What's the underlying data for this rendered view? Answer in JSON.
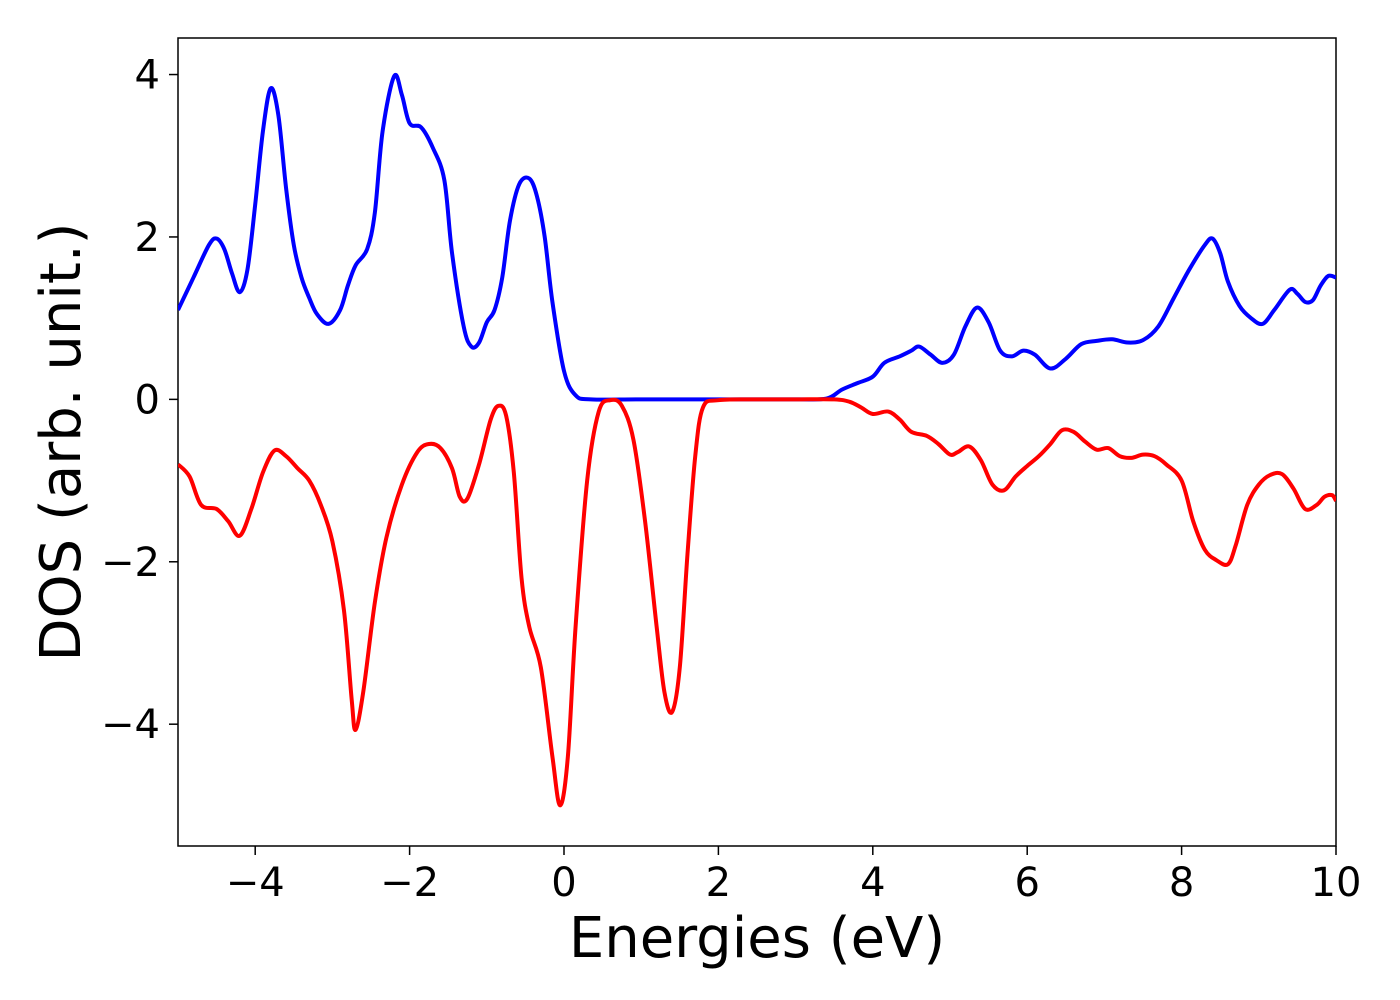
{
  "chart_data": {
    "type": "line",
    "title": "",
    "xlabel": "Energies (eV)",
    "ylabel": "DOS (arb. unit.)",
    "xlim": [
      -5,
      10
    ],
    "ylim": [
      -5.5,
      4.45
    ],
    "x_ticks": [
      -4,
      -2,
      0,
      2,
      4,
      6,
      8,
      10
    ],
    "x_tick_labels": [
      "−4",
      "−2",
      "0",
      "2",
      "4",
      "6",
      "8",
      "10"
    ],
    "y_ticks": [
      4,
      2,
      0,
      -2,
      -4
    ],
    "y_tick_labels": [
      "4",
      "2",
      "0",
      "−2",
      "−4"
    ],
    "grid": false,
    "series": [
      {
        "color": "#0000ff",
        "points": [
          [
            -5.0,
            1.1
          ],
          [
            -4.8,
            1.5
          ],
          [
            -4.6,
            1.9
          ],
          [
            -4.5,
            1.98
          ],
          [
            -4.4,
            1.85
          ],
          [
            -4.3,
            1.55
          ],
          [
            -4.2,
            1.32
          ],
          [
            -4.1,
            1.6
          ],
          [
            -4.0,
            2.4
          ],
          [
            -3.9,
            3.3
          ],
          [
            -3.8,
            3.83
          ],
          [
            -3.7,
            3.5
          ],
          [
            -3.6,
            2.6
          ],
          [
            -3.5,
            1.9
          ],
          [
            -3.4,
            1.5
          ],
          [
            -3.3,
            1.25
          ],
          [
            -3.2,
            1.05
          ],
          [
            -3.05,
            0.93
          ],
          [
            -2.9,
            1.1
          ],
          [
            -2.8,
            1.4
          ],
          [
            -2.7,
            1.65
          ],
          [
            -2.55,
            1.85
          ],
          [
            -2.45,
            2.3
          ],
          [
            -2.35,
            3.3
          ],
          [
            -2.2,
            3.98
          ],
          [
            -2.1,
            3.75
          ],
          [
            -2.0,
            3.4
          ],
          [
            -1.85,
            3.35
          ],
          [
            -1.7,
            3.1
          ],
          [
            -1.55,
            2.7
          ],
          [
            -1.45,
            1.8
          ],
          [
            -1.3,
            0.9
          ],
          [
            -1.2,
            0.65
          ],
          [
            -1.1,
            0.7
          ],
          [
            -1.0,
            0.95
          ],
          [
            -0.9,
            1.1
          ],
          [
            -0.8,
            1.5
          ],
          [
            -0.7,
            2.2
          ],
          [
            -0.58,
            2.65
          ],
          [
            -0.45,
            2.72
          ],
          [
            -0.35,
            2.5
          ],
          [
            -0.25,
            2.0
          ],
          [
            -0.15,
            1.2
          ],
          [
            0.0,
            0.35
          ],
          [
            0.15,
            0.05
          ],
          [
            0.35,
            0.0
          ],
          [
            1.0,
            0.0
          ],
          [
            2.0,
            0.0
          ],
          [
            3.0,
            0.0
          ],
          [
            3.4,
            0.01
          ],
          [
            3.6,
            0.12
          ],
          [
            3.8,
            0.2
          ],
          [
            4.0,
            0.28
          ],
          [
            4.15,
            0.45
          ],
          [
            4.35,
            0.53
          ],
          [
            4.5,
            0.6
          ],
          [
            4.6,
            0.65
          ],
          [
            4.75,
            0.55
          ],
          [
            4.9,
            0.45
          ],
          [
            5.05,
            0.55
          ],
          [
            5.2,
            0.9
          ],
          [
            5.35,
            1.13
          ],
          [
            5.5,
            0.95
          ],
          [
            5.65,
            0.6
          ],
          [
            5.8,
            0.53
          ],
          [
            5.95,
            0.6
          ],
          [
            6.1,
            0.55
          ],
          [
            6.3,
            0.38
          ],
          [
            6.5,
            0.5
          ],
          [
            6.7,
            0.68
          ],
          [
            6.9,
            0.72
          ],
          [
            7.1,
            0.74
          ],
          [
            7.3,
            0.7
          ],
          [
            7.5,
            0.73
          ],
          [
            7.7,
            0.9
          ],
          [
            7.9,
            1.25
          ],
          [
            8.1,
            1.6
          ],
          [
            8.3,
            1.9
          ],
          [
            8.4,
            1.98
          ],
          [
            8.5,
            1.8
          ],
          [
            8.6,
            1.45
          ],
          [
            8.75,
            1.15
          ],
          [
            8.9,
            1.0
          ],
          [
            9.05,
            0.93
          ],
          [
            9.2,
            1.1
          ],
          [
            9.4,
            1.35
          ],
          [
            9.5,
            1.3
          ],
          [
            9.6,
            1.2
          ],
          [
            9.7,
            1.22
          ],
          [
            9.8,
            1.4
          ],
          [
            9.9,
            1.52
          ],
          [
            10.0,
            1.5
          ]
        ]
      },
      {
        "color": "#ff0000",
        "points": [
          [
            -5.0,
            -0.8
          ],
          [
            -4.85,
            -0.95
          ],
          [
            -4.7,
            -1.3
          ],
          [
            -4.5,
            -1.35
          ],
          [
            -4.35,
            -1.5
          ],
          [
            -4.2,
            -1.68
          ],
          [
            -4.05,
            -1.35
          ],
          [
            -3.9,
            -0.9
          ],
          [
            -3.75,
            -0.63
          ],
          [
            -3.6,
            -0.7
          ],
          [
            -3.45,
            -0.85
          ],
          [
            -3.3,
            -1.0
          ],
          [
            -3.15,
            -1.3
          ],
          [
            -3.0,
            -1.75
          ],
          [
            -2.85,
            -2.6
          ],
          [
            -2.75,
            -3.7
          ],
          [
            -2.7,
            -4.07
          ],
          [
            -2.6,
            -3.6
          ],
          [
            -2.45,
            -2.5
          ],
          [
            -2.3,
            -1.7
          ],
          [
            -2.1,
            -1.05
          ],
          [
            -1.9,
            -0.65
          ],
          [
            -1.75,
            -0.55
          ],
          [
            -1.6,
            -0.6
          ],
          [
            -1.45,
            -0.85
          ],
          [
            -1.35,
            -1.2
          ],
          [
            -1.25,
            -1.22
          ],
          [
            -1.1,
            -0.8
          ],
          [
            -0.95,
            -0.25
          ],
          [
            -0.85,
            -0.08
          ],
          [
            -0.75,
            -0.2
          ],
          [
            -0.65,
            -0.9
          ],
          [
            -0.55,
            -2.2
          ],
          [
            -0.45,
            -2.8
          ],
          [
            -0.3,
            -3.3
          ],
          [
            -0.15,
            -4.4
          ],
          [
            -0.05,
            -5.0
          ],
          [
            0.05,
            -4.4
          ],
          [
            0.15,
            -2.8
          ],
          [
            0.3,
            -1.0
          ],
          [
            0.45,
            -0.15
          ],
          [
            0.6,
            -0.01
          ],
          [
            0.75,
            -0.08
          ],
          [
            0.9,
            -0.5
          ],
          [
            1.05,
            -1.5
          ],
          [
            1.2,
            -2.8
          ],
          [
            1.3,
            -3.6
          ],
          [
            1.4,
            -3.85
          ],
          [
            1.5,
            -3.3
          ],
          [
            1.6,
            -1.9
          ],
          [
            1.7,
            -0.7
          ],
          [
            1.8,
            -0.1
          ],
          [
            2.0,
            -0.01
          ],
          [
            2.5,
            0.0
          ],
          [
            3.0,
            0.0
          ],
          [
            3.5,
            0.0
          ],
          [
            3.7,
            -0.03
          ],
          [
            3.85,
            -0.1
          ],
          [
            4.0,
            -0.18
          ],
          [
            4.2,
            -0.15
          ],
          [
            4.35,
            -0.25
          ],
          [
            4.5,
            -0.4
          ],
          [
            4.7,
            -0.45
          ],
          [
            4.85,
            -0.55
          ],
          [
            5.0,
            -0.68
          ],
          [
            5.1,
            -0.65
          ],
          [
            5.25,
            -0.58
          ],
          [
            5.4,
            -0.75
          ],
          [
            5.55,
            -1.05
          ],
          [
            5.7,
            -1.12
          ],
          [
            5.85,
            -0.95
          ],
          [
            6.0,
            -0.82
          ],
          [
            6.15,
            -0.7
          ],
          [
            6.3,
            -0.55
          ],
          [
            6.45,
            -0.38
          ],
          [
            6.6,
            -0.4
          ],
          [
            6.75,
            -0.52
          ],
          [
            6.9,
            -0.62
          ],
          [
            7.05,
            -0.6
          ],
          [
            7.2,
            -0.7
          ],
          [
            7.35,
            -0.72
          ],
          [
            7.5,
            -0.68
          ],
          [
            7.65,
            -0.7
          ],
          [
            7.8,
            -0.8
          ],
          [
            8.0,
            -1.0
          ],
          [
            8.15,
            -1.5
          ],
          [
            8.3,
            -1.85
          ],
          [
            8.45,
            -1.98
          ],
          [
            8.6,
            -2.03
          ],
          [
            8.7,
            -1.8
          ],
          [
            8.85,
            -1.3
          ],
          [
            9.0,
            -1.05
          ],
          [
            9.15,
            -0.93
          ],
          [
            9.3,
            -0.92
          ],
          [
            9.45,
            -1.1
          ],
          [
            9.6,
            -1.35
          ],
          [
            9.75,
            -1.3
          ],
          [
            9.85,
            -1.2
          ],
          [
            9.95,
            -1.18
          ],
          [
            10.0,
            -1.25
          ]
        ]
      }
    ]
  }
}
